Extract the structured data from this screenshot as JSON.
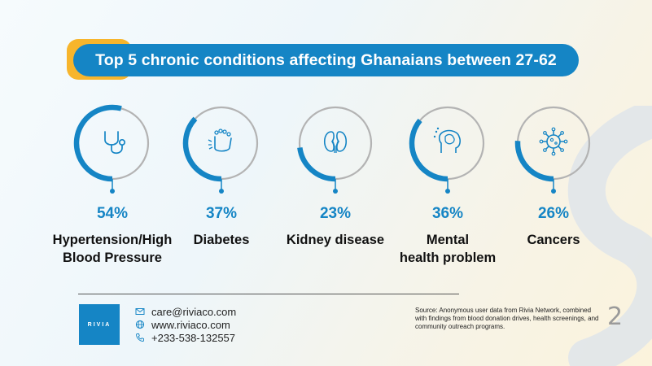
{
  "title": "Top 5 chronic conditions affecting Ghanaians between 27-62",
  "chart_data": {
    "type": "radial-progress",
    "title": "Top 5 chronic conditions affecting Ghanaians between 27-62",
    "unit": "%",
    "categories": [
      "Hypertension/High Blood Pressure",
      "Diabetes",
      "Kidney disease",
      "Mental health problem",
      "Cancers"
    ],
    "values": [
      54,
      37,
      23,
      36,
      26
    ],
    "items": [
      {
        "value_label": "54%",
        "label_lines": [
          "Hypertension/High",
          "Blood Pressure"
        ],
        "icon": "stethoscope-icon"
      },
      {
        "value_label": "37%",
        "label_lines": [
          "Diabetes"
        ],
        "icon": "foot-icon"
      },
      {
        "value_label": "23%",
        "label_lines": [
          "Kidney disease"
        ],
        "icon": "kidneys-icon"
      },
      {
        "value_label": "36%",
        "label_lines": [
          "Mental",
          "health problem"
        ],
        "icon": "brain-head-icon"
      },
      {
        "value_label": "26%",
        "label_lines": [
          "Cancers"
        ],
        "icon": "virus-cell-icon"
      }
    ],
    "colors": {
      "arc": "#1585c5",
      "track": "#b3b3b3"
    }
  },
  "footer": {
    "logo_text": "RIVIA",
    "email": "care@riviaco.com",
    "website": "www.riviaco.com",
    "phone": "+233-538-132557",
    "source": "Source: Anonymous user data from Rivia Network, combined with findings from blood donation drives, health screenings, and community outreach programs.",
    "page_number": "2"
  },
  "colors": {
    "accent": "#1585c5",
    "highlight": "#f7b52c",
    "text": "#111111"
  }
}
